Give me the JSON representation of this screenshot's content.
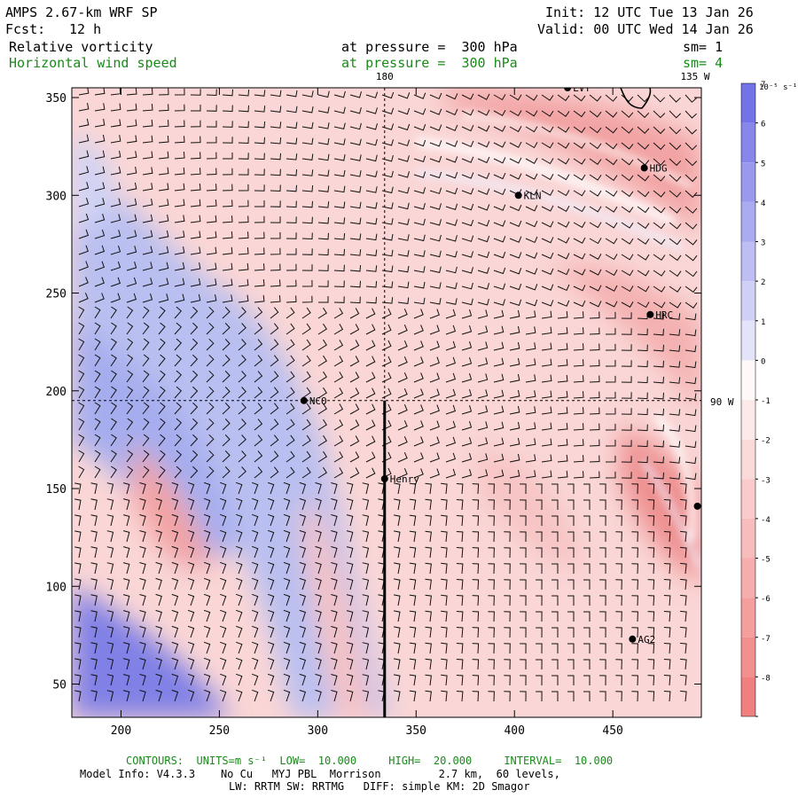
{
  "header": {
    "model": "AMPS 2.67-km WRF SP",
    "forecast_label": "Fcst:",
    "forecast_value": "12 h",
    "init": "Init: 12 UTC Tue 13 Jan 26",
    "valid": "Valid: 00 UTC Wed 14 Jan 26",
    "field1": "Relative vorticity",
    "field1_level": "at pressure =  300 hPa",
    "field1_sm": "sm= 1",
    "field2": "Horizontal wind speed",
    "field2_level": "at pressure =  300 hPa",
    "field2_sm": "sm= 4"
  },
  "map": {
    "x_ticks": [
      200,
      250,
      300,
      350,
      400,
      450
    ],
    "y_ticks": [
      50,
      100,
      150,
      200,
      250,
      300,
      350
    ],
    "x_range": [
      175,
      495
    ],
    "y_range": [
      33,
      355
    ],
    "meridian_labels": [
      {
        "text": "180"
      },
      {
        "text": "135 W"
      },
      {
        "text": "90 W"
      }
    ],
    "stations": [
      {
        "name": "LVT",
        "x": 427,
        "y": 355
      },
      {
        "name": "HDG",
        "x": 466,
        "y": 314
      },
      {
        "name": "KLN",
        "x": 402,
        "y": 300
      },
      {
        "name": "HRC",
        "x": 469,
        "y": 239
      },
      {
        "name": "NCO",
        "x": 293,
        "y": 195
      },
      {
        "name": "Henry",
        "x": 334,
        "y": 155
      },
      {
        "name": "AG2",
        "x": 460,
        "y": 73
      },
      {
        "name": "",
        "x": 493,
        "y": 141
      }
    ],
    "cross_section": {
      "x": 334,
      "y_start": 33,
      "y_end": 195
    },
    "colors": {
      "negative": "#f08080",
      "positive": "#6a6ae6",
      "zero": "#ffffff"
    }
  },
  "colorbar": {
    "unit": "10⁻⁵ s⁻¹",
    "levels": [
      7,
      6,
      5,
      4,
      3,
      2,
      1,
      0,
      -1,
      -2,
      -3,
      -4,
      -5,
      -6,
      -7,
      -8
    ]
  },
  "footer": {
    "contours_label": "CONTOURS:",
    "units": "UNITS=m s⁻¹",
    "low_label": "LOW=",
    "low_value": "10.000",
    "high_label": "HIGH=",
    "high_value": "20.000",
    "interval_label": "INTERVAL=",
    "interval_value": "10.000",
    "line1": "Model Info: V4.3.3    No Cu   MYJ PBL  Morrison         2.7 km,  60 levels,",
    "line2": "LW: RRTM SW: RRTMG   DIFF: simple KM: 2D Smagor"
  }
}
